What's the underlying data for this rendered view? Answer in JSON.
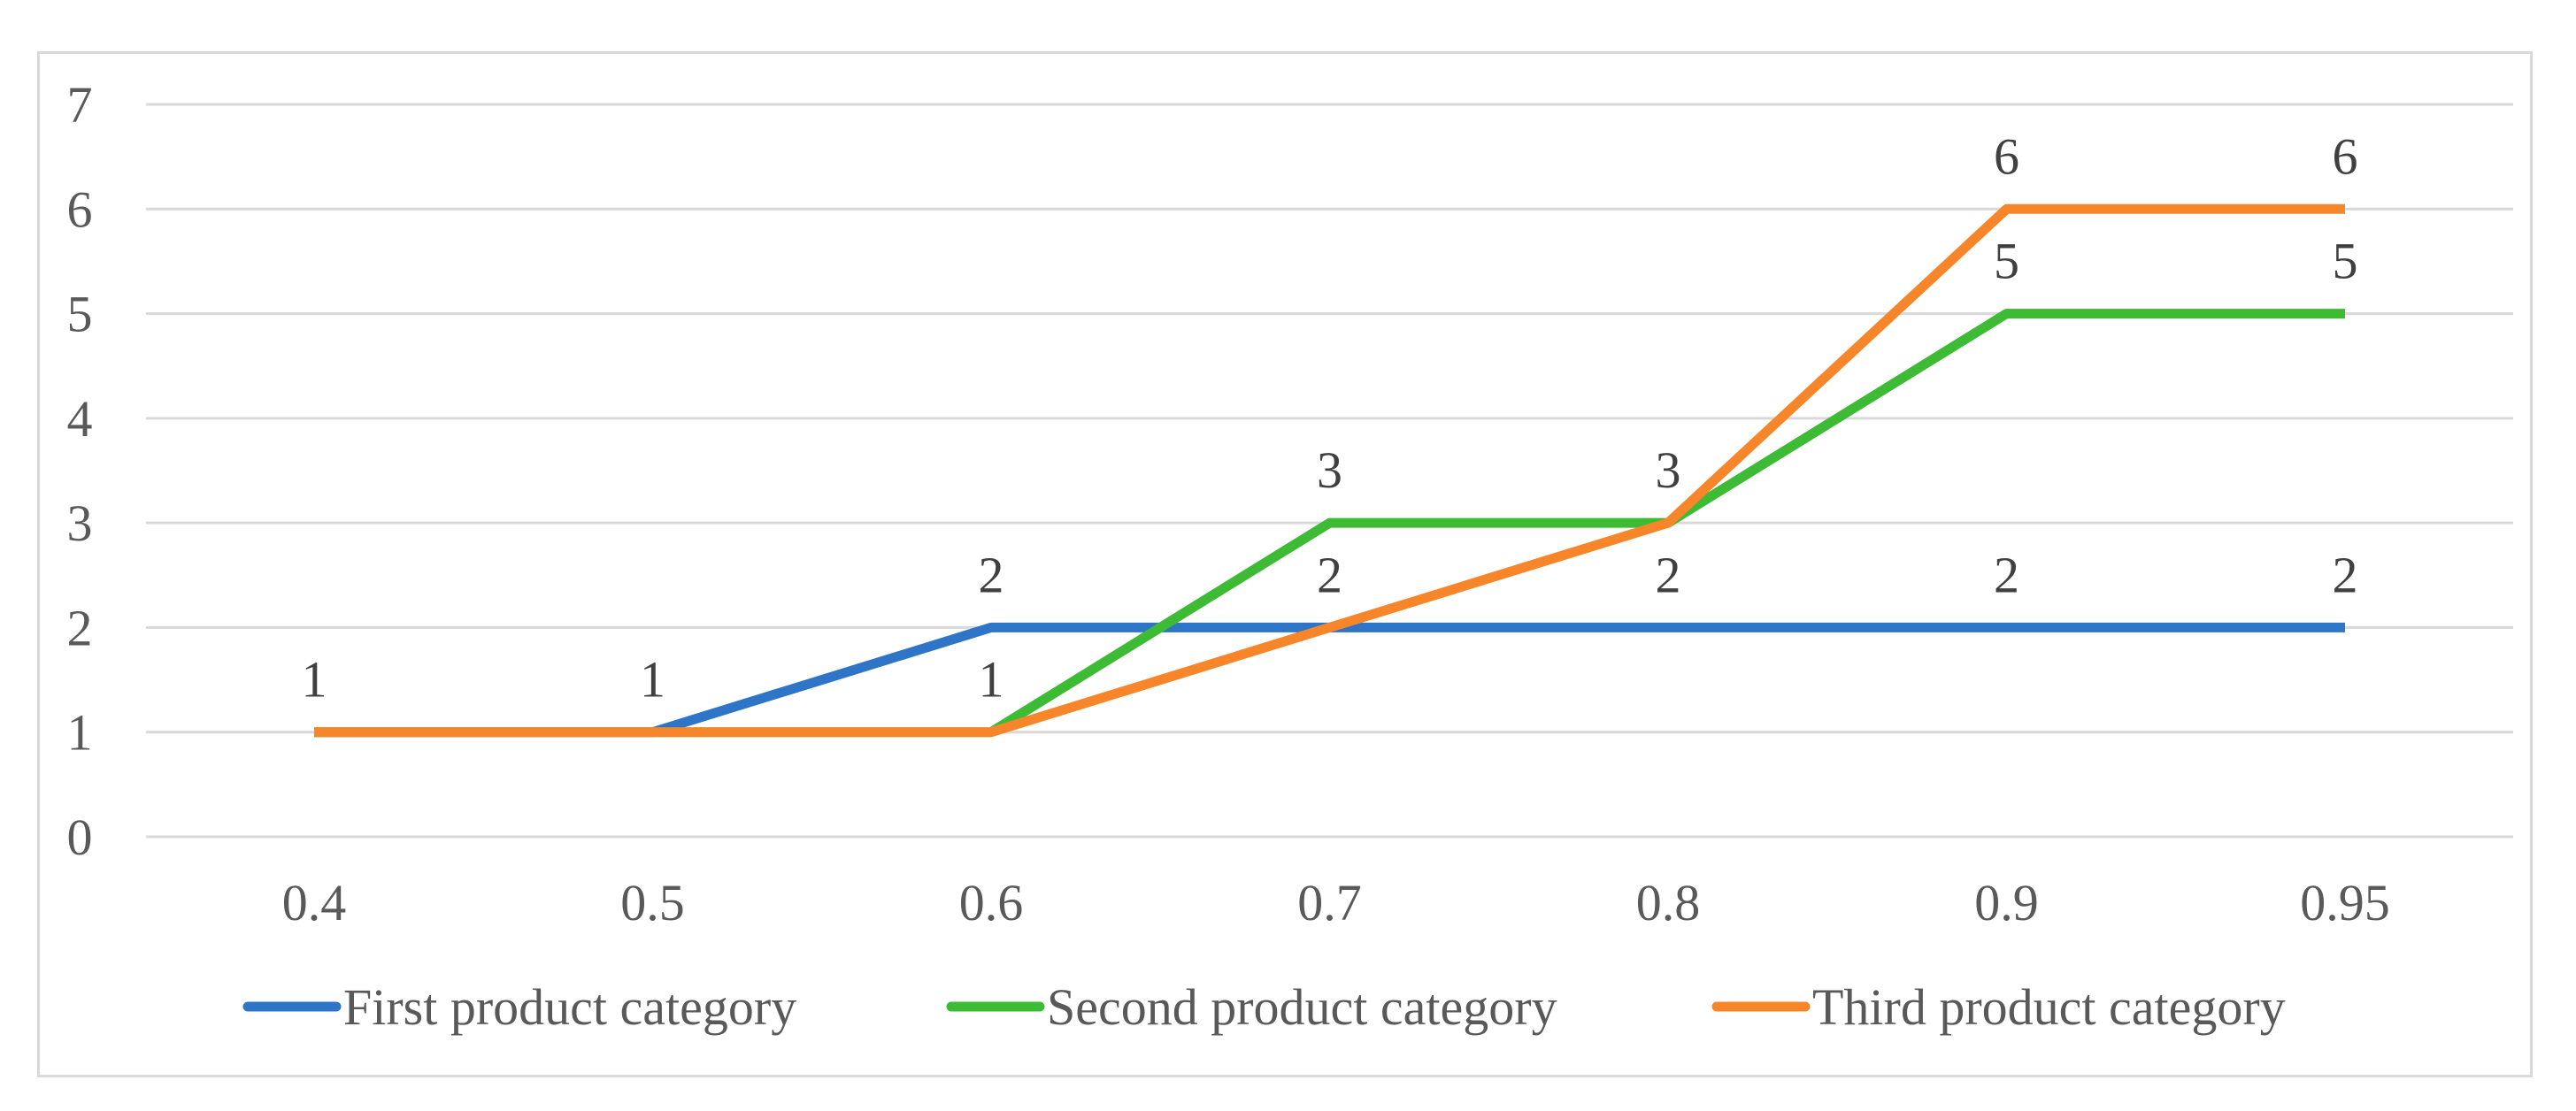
{
  "chart_data": {
    "type": "line",
    "title": "",
    "xlabel": "",
    "ylabel": "",
    "categories": [
      "0.4",
      "0.5",
      "0.6",
      "0.7",
      "0.8",
      "0.9",
      "0.95"
    ],
    "ylim": [
      0,
      7
    ],
    "yticks": [
      "0",
      "1",
      "2",
      "3",
      "4",
      "5",
      "6",
      "7"
    ],
    "grid": "horizontal",
    "legend": "bottom",
    "series": [
      {
        "name": "First product category",
        "color": "#2E75C8",
        "values": [
          1,
          1,
          2,
          2,
          2,
          2,
          2
        ]
      },
      {
        "name": "Second product category",
        "color": "#3DBB35",
        "values": [
          1,
          1,
          1,
          3,
          3,
          5,
          5
        ]
      },
      {
        "name": "Third product category",
        "color": "#F7862A",
        "values": [
          1,
          1,
          1,
          2,
          3,
          6,
          6
        ]
      }
    ],
    "data_labels": [
      {
        "category": "0.4",
        "value": 1,
        "text": "1"
      },
      {
        "category": "0.5",
        "value": 1,
        "text": "1"
      },
      {
        "category": "0.6",
        "value": 2,
        "text": "2"
      },
      {
        "category": "0.6",
        "value": 1,
        "text": "1"
      },
      {
        "category": "0.7",
        "value": 3,
        "text": "3"
      },
      {
        "category": "0.7",
        "value": 2,
        "text": "2"
      },
      {
        "category": "0.8",
        "value": 3,
        "text": "3"
      },
      {
        "category": "0.8",
        "value": 2,
        "text": "2"
      },
      {
        "category": "0.9",
        "value": 6,
        "text": "6"
      },
      {
        "category": "0.9",
        "value": 5,
        "text": "5"
      },
      {
        "category": "0.9",
        "value": 2,
        "text": "2"
      },
      {
        "category": "0.95",
        "value": 6,
        "text": "6"
      },
      {
        "category": "0.95",
        "value": 5,
        "text": "5"
      },
      {
        "category": "0.95",
        "value": 2,
        "text": "2"
      }
    ]
  }
}
